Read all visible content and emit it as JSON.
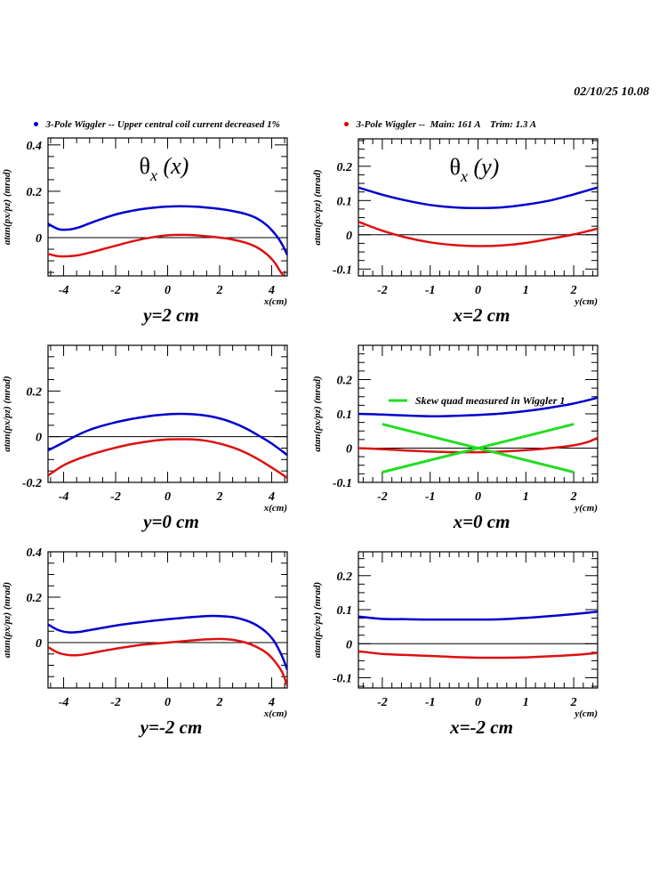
{
  "header": {
    "timestamp": "02/10/25   10.08",
    "legend": [
      {
        "label": "3-Pole Wiggler -- Upper central coil current decreased 1%",
        "color": "#0000cc"
      },
      {
        "label": "3-Pole Wiggler --  Main: 161 A    Trim: 1.3 A",
        "color": "#dd0000"
      }
    ]
  },
  "colors": {
    "blue": "#0000cc",
    "red": "#dd1111",
    "green": "#22dd22",
    "axis": "#000000"
  },
  "chart_data": [
    {
      "type": "line",
      "panel": "top-left",
      "title": "θx (x)",
      "title_main": "θ",
      "title_sub": "x",
      "title_arg": " (x)",
      "caption": "y=2 cm",
      "xlabel": "x(cm)",
      "ylabel": "atan(px/pz) (mrad)",
      "xlim": [
        -4.6,
        4.6
      ],
      "ylim": [
        -0.165,
        0.43
      ],
      "xticks": [
        -4,
        -2,
        0,
        2,
        4
      ],
      "xtick_labels": [
        "-4",
        "-2",
        "0",
        "2",
        "4"
      ],
      "yticks": [
        0,
        0.2,
        0.4
      ],
      "ytick_labels": [
        "0",
        "0.2",
        "0.4"
      ],
      "x_minor": 0.5,
      "y_minor": 0.05,
      "series": [
        {
          "name": "3-Pole Wiggler -- Upper central coil current decreased 1%",
          "color": "blue",
          "x": [
            -4.6,
            -4.2,
            -3.8,
            -3.4,
            -3.0,
            -2.5,
            -2.0,
            -1.5,
            -1.0,
            -0.5,
            0,
            0.5,
            1.0,
            1.5,
            2.0,
            2.5,
            3.0,
            3.4,
            3.8,
            4.1,
            4.3,
            4.5,
            4.6
          ],
          "y": [
            0.06,
            0.037,
            0.035,
            0.045,
            0.062,
            0.082,
            0.1,
            0.113,
            0.123,
            0.13,
            0.134,
            0.135,
            0.134,
            0.13,
            0.124,
            0.115,
            0.102,
            0.085,
            0.055,
            0.02,
            -0.01,
            -0.05,
            -0.075
          ]
        },
        {
          "name": "3-Pole Wiggler --  Main: 161 A    Trim: 1.3 A",
          "color": "red",
          "x": [
            -4.6,
            -4.2,
            -3.8,
            -3.4,
            -3.0,
            -2.5,
            -2.0,
            -1.5,
            -1.0,
            -0.5,
            0,
            0.5,
            1.0,
            1.5,
            2.0,
            2.5,
            3.0,
            3.4,
            3.8,
            4.1,
            4.3,
            4.45
          ],
          "y": [
            -0.07,
            -0.08,
            -0.08,
            -0.075,
            -0.065,
            -0.05,
            -0.035,
            -0.02,
            -0.007,
            0.003,
            0.01,
            0.012,
            0.011,
            0.006,
            0.0,
            -0.008,
            -0.022,
            -0.04,
            -0.07,
            -0.105,
            -0.14,
            -0.165
          ]
        }
      ]
    },
    {
      "type": "line",
      "panel": "top-right",
      "title": "θx (y)",
      "title_main": "θ",
      "title_sub": "x",
      "title_arg": " (y)",
      "caption": "x=2 cm",
      "xlabel": "y(cm)",
      "ylabel": "atan(px/pz) (mrad)",
      "xlim": [
        -2.5,
        2.5
      ],
      "ylim": [
        -0.12,
        0.28
      ],
      "xticks": [
        -2,
        -1,
        0,
        1,
        2
      ],
      "xtick_labels": [
        "-2",
        "-1",
        "0",
        "1",
        "2"
      ],
      "yticks": [
        -0.1,
        0,
        0.1,
        0.2
      ],
      "ytick_labels": [
        "-0.1",
        "0",
        "0.1",
        "0.2"
      ],
      "x_minor": 0.2,
      "y_minor": 0.025,
      "series": [
        {
          "name": "3-Pole Wiggler -- Upper central coil current decreased 1%",
          "color": "blue",
          "x": [
            -2.5,
            -2.0,
            -1.5,
            -1.0,
            -0.5,
            0,
            0.5,
            1.0,
            1.5,
            2.0,
            2.5
          ],
          "y": [
            0.138,
            0.117,
            0.1,
            0.087,
            0.08,
            0.078,
            0.08,
            0.088,
            0.1,
            0.118,
            0.138
          ]
        },
        {
          "name": "3-Pole Wiggler --  Main: 161 A    Trim: 1.3 A",
          "color": "red",
          "x": [
            -2.5,
            -2.0,
            -1.5,
            -1.0,
            -0.5,
            0,
            0.5,
            1.0,
            1.5,
            2.0,
            2.5
          ],
          "y": [
            0.038,
            0.012,
            -0.008,
            -0.022,
            -0.03,
            -0.033,
            -0.031,
            -0.024,
            -0.012,
            0.001,
            0.018
          ]
        }
      ]
    },
    {
      "type": "line",
      "panel": "middle-left",
      "caption": "y=0 cm",
      "xlabel": "x(cm)",
      "ylabel": "atan(px/pz) (mrad)",
      "xlim": [
        -4.6,
        4.6
      ],
      "ylim": [
        -0.2,
        0.4
      ],
      "xticks": [
        -4,
        -2,
        0,
        2,
        4
      ],
      "xtick_labels": [
        "-4",
        "-2",
        "0",
        "2",
        "4"
      ],
      "yticks": [
        -0.2,
        0,
        0.2
      ],
      "ytick_labels": [
        "-0.2",
        "0",
        "0.2"
      ],
      "x_minor": 0.5,
      "y_minor": 0.05,
      "series": [
        {
          "name": "3-Pole Wiggler -- Upper central coil current decreased 1%",
          "color": "blue",
          "x": [
            -4.6,
            -4.0,
            -3.5,
            -3.0,
            -2.5,
            -2.0,
            -1.5,
            -1.0,
            -0.5,
            0,
            0.5,
            1.0,
            1.5,
            2.0,
            2.5,
            3.0,
            3.5,
            4.0,
            4.6
          ],
          "y": [
            -0.06,
            -0.025,
            0.005,
            0.03,
            0.048,
            0.063,
            0.075,
            0.085,
            0.093,
            0.098,
            0.1,
            0.098,
            0.092,
            0.08,
            0.062,
            0.037,
            0.005,
            -0.03,
            -0.08
          ]
        },
        {
          "name": "3-Pole Wiggler --  Main: 161 A    Trim: 1.3 A",
          "color": "red",
          "x": [
            -4.6,
            -4.0,
            -3.5,
            -3.0,
            -2.5,
            -2.0,
            -1.5,
            -1.0,
            -0.5,
            0,
            0.5,
            1.0,
            1.5,
            2.0,
            2.5,
            3.0,
            3.5,
            4.0,
            4.6
          ],
          "y": [
            -0.17,
            -0.125,
            -0.1,
            -0.08,
            -0.063,
            -0.048,
            -0.035,
            -0.025,
            -0.017,
            -0.012,
            -0.011,
            -0.012,
            -0.018,
            -0.03,
            -0.047,
            -0.07,
            -0.1,
            -0.135,
            -0.18
          ]
        }
      ]
    },
    {
      "type": "line",
      "panel": "middle-right",
      "caption": "x=0 cm",
      "xlabel": "y(cm)",
      "ylabel": "atan(px/pz) (mrad)",
      "xlim": [
        -2.5,
        2.5
      ],
      "ylim": [
        -0.1,
        0.3
      ],
      "xticks": [
        -2,
        -1,
        0,
        1,
        2
      ],
      "xtick_labels": [
        "-2",
        "-1",
        "0",
        "1",
        "2"
      ],
      "yticks": [
        -0.1,
        0,
        0.1,
        0.2
      ],
      "ytick_labels": [
        "-0.1",
        "0",
        "0.1",
        "0.2"
      ],
      "x_minor": 0.2,
      "y_minor": 0.025,
      "legend_entry": "Skew quad measured in Wiggler 1",
      "series": [
        {
          "name": "3-Pole Wiggler -- Upper central coil current decreased 1%",
          "color": "blue",
          "x": [
            -2.5,
            -2.0,
            -1.5,
            -1.0,
            -0.5,
            0,
            0.5,
            1.0,
            1.5,
            2.0,
            2.5
          ],
          "y": [
            0.1,
            0.098,
            0.095,
            0.093,
            0.094,
            0.097,
            0.101,
            0.108,
            0.118,
            0.13,
            0.147
          ]
        },
        {
          "name": "3-Pole Wiggler --  Main: 161 A    Trim: 1.3 A",
          "color": "red",
          "x": [
            -2.5,
            -2.0,
            -1.5,
            -1.0,
            -0.5,
            0,
            0.5,
            1.0,
            1.5,
            2.0,
            2.3,
            2.5
          ],
          "y": [
            0.0,
            -0.003,
            -0.007,
            -0.01,
            -0.012,
            -0.012,
            -0.01,
            -0.006,
            0.0,
            0.008,
            0.018,
            0.03
          ]
        },
        {
          "name": "Skew quad measured in Wiggler 1",
          "color": "green",
          "x": [
            -2,
            2
          ],
          "y": [
            0.07,
            -0.07
          ]
        },
        {
          "name": "Skew quad measured in Wiggler 1 (b)",
          "color": "green",
          "x": [
            -2,
            2
          ],
          "y": [
            -0.07,
            0.07
          ]
        }
      ]
    },
    {
      "type": "line",
      "panel": "bottom-left",
      "caption": "y=-2 cm",
      "xlabel": "x(cm)",
      "ylabel": "atan(px/pz) (mrad)",
      "xlim": [
        -4.6,
        4.6
      ],
      "ylim": [
        -0.2,
        0.4
      ],
      "xticks": [
        -4,
        -2,
        0,
        2,
        4
      ],
      "xtick_labels": [
        "-4",
        "-2",
        "0",
        "2",
        "4"
      ],
      "yticks": [
        0,
        0.2,
        0.4
      ],
      "ytick_labels": [
        "0",
        "0.2",
        "0.4"
      ],
      "x_minor": 0.5,
      "y_minor": 0.05,
      "series": [
        {
          "name": "3-Pole Wiggler -- Upper central coil current decreased 1%",
          "color": "blue",
          "x": [
            -4.6,
            -4.2,
            -3.8,
            -3.4,
            -3.0,
            -2.5,
            -2.0,
            -1.5,
            -1.0,
            -0.5,
            0,
            0.5,
            1.0,
            1.5,
            2.0,
            2.5,
            3.0,
            3.4,
            3.8,
            4.1,
            4.4,
            4.6
          ],
          "y": [
            0.08,
            0.055,
            0.045,
            0.047,
            0.055,
            0.065,
            0.075,
            0.083,
            0.09,
            0.097,
            0.103,
            0.108,
            0.113,
            0.117,
            0.117,
            0.112,
            0.098,
            0.078,
            0.045,
            0.005,
            -0.06,
            -0.12
          ]
        },
        {
          "name": "3-Pole Wiggler --  Main: 161 A    Trim: 1.3 A",
          "color": "red",
          "x": [
            -4.6,
            -4.2,
            -3.8,
            -3.4,
            -3.0,
            -2.5,
            -2.0,
            -1.5,
            -1.0,
            -0.5,
            0,
            0.5,
            1.0,
            1.5,
            2.0,
            2.5,
            3.0,
            3.4,
            3.8,
            4.1,
            4.4,
            4.6
          ],
          "y": [
            -0.02,
            -0.045,
            -0.055,
            -0.055,
            -0.048,
            -0.037,
            -0.027,
            -0.018,
            -0.01,
            -0.005,
            0.0,
            0.005,
            0.01,
            0.014,
            0.016,
            0.012,
            0.0,
            -0.018,
            -0.045,
            -0.08,
            -0.13,
            -0.19
          ]
        }
      ]
    },
    {
      "type": "line",
      "panel": "bottom-right",
      "caption": "x=-2 cm",
      "xlabel": "y(cm)",
      "ylabel": "atan(px/pz) (mrad)",
      "xlim": [
        -2.5,
        2.5
      ],
      "ylim": [
        -0.13,
        0.27
      ],
      "xticks": [
        -2,
        -1,
        0,
        1,
        2
      ],
      "xtick_labels": [
        "-2",
        "-1",
        "0",
        "1",
        "2"
      ],
      "yticks": [
        -0.1,
        0,
        0.1,
        0.2
      ],
      "ytick_labels": [
        "-0.1",
        "0",
        "0.1",
        "0.2"
      ],
      "x_minor": 0.2,
      "y_minor": 0.025,
      "series": [
        {
          "name": "3-Pole Wiggler -- Upper central coil current decreased 1%",
          "color": "blue",
          "x": [
            -2.5,
            -2.0,
            -1.5,
            -1.0,
            -0.5,
            0,
            0.5,
            1.0,
            1.5,
            2.0,
            2.5
          ],
          "y": [
            0.08,
            0.073,
            0.072,
            0.071,
            0.071,
            0.071,
            0.072,
            0.076,
            0.081,
            0.087,
            0.094
          ]
        },
        {
          "name": "3-Pole Wiggler --  Main: 161 A    Trim: 1.3 A",
          "color": "red",
          "x": [
            -2.5,
            -2.0,
            -1.5,
            -1.0,
            -0.5,
            0,
            0.5,
            1.0,
            1.5,
            2.0,
            2.5
          ],
          "y": [
            -0.022,
            -0.03,
            -0.033,
            -0.036,
            -0.039,
            -0.041,
            -0.041,
            -0.04,
            -0.037,
            -0.033,
            -0.027
          ]
        }
      ]
    }
  ]
}
